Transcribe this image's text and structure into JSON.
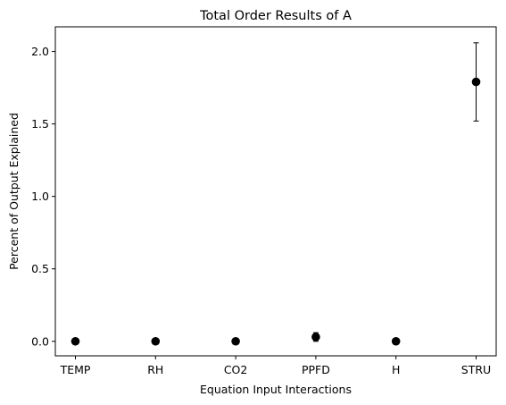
{
  "chart_data": {
    "type": "scatter",
    "title": "Total Order Results of A",
    "xlabel": "Equation Input Interactions",
    "ylabel": "Percent of Output Explained",
    "categories": [
      "TEMP",
      "RH",
      "CO2",
      "PPFD",
      "H",
      "STRU"
    ],
    "values": [
      0.0,
      0.0,
      0.0,
      0.03,
      0.0,
      1.79
    ],
    "error_low": [
      0.0,
      0.0,
      0.0,
      0.0,
      0.0,
      1.52
    ],
    "error_high": [
      0.0,
      0.0,
      0.0,
      0.06,
      0.0,
      2.06
    ],
    "ylim": [
      -0.1,
      2.17
    ],
    "yticks": [
      0.0,
      0.5,
      1.0,
      1.5,
      2.0
    ],
    "ytick_labels": [
      "0.0",
      "0.5",
      "1.0",
      "1.5",
      "2.0"
    ],
    "grid": false,
    "marker_color": "#000000"
  }
}
